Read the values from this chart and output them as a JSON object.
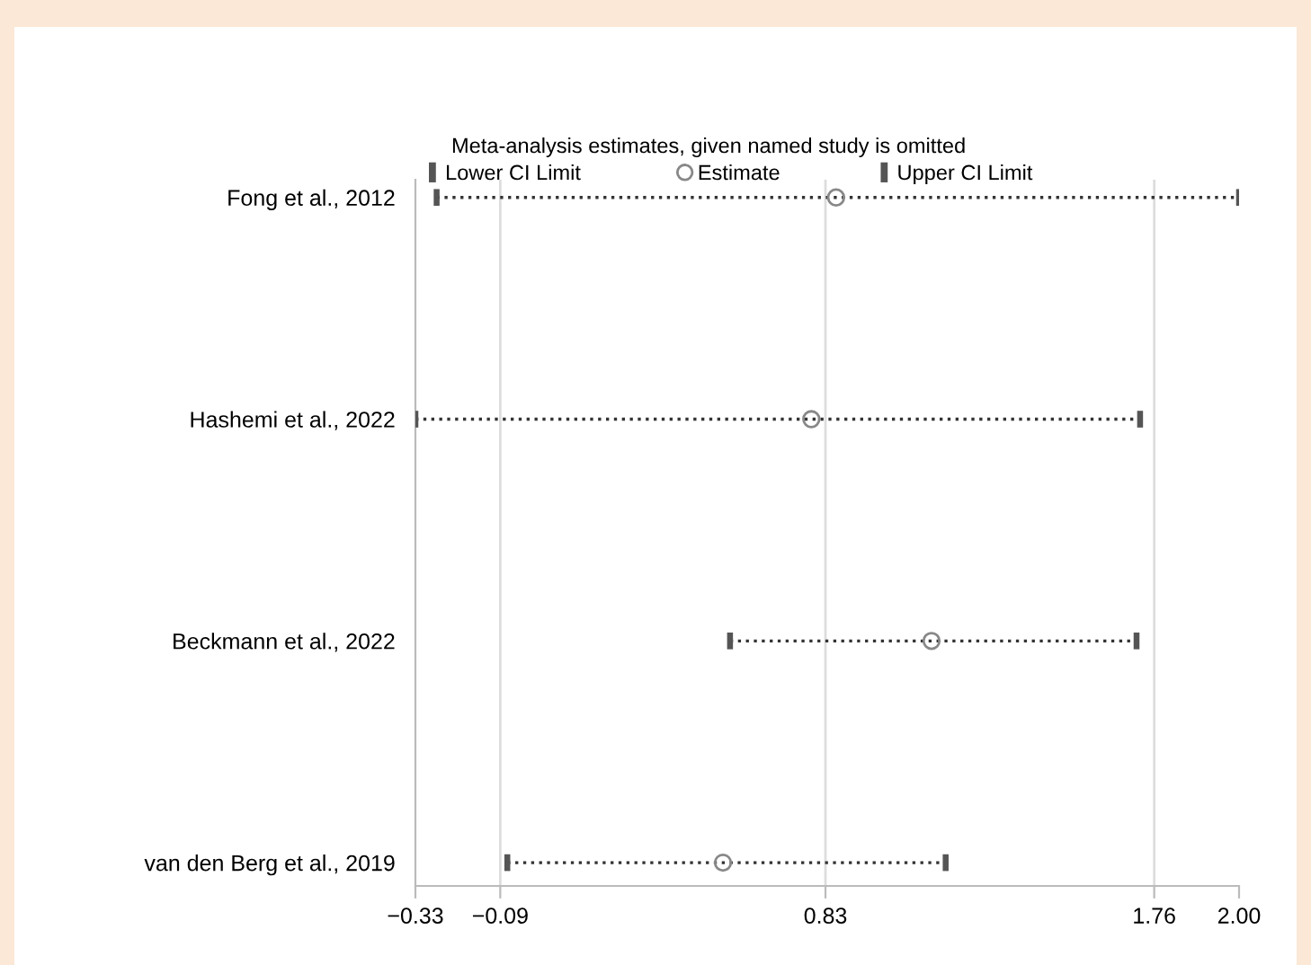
{
  "chart_data": {
    "type": "scatter",
    "orientation": "horizontal",
    "title": "Meta-analysis estimates, given named study is omitted",
    "categories": [
      "Fong et al., 2012",
      "Hashemi et al., 2022",
      "Beckmann et al., 2022",
      "van den Berg et al., 2019"
    ],
    "series": [
      {
        "name": "Lower CI Limit",
        "color": "#555555",
        "values": [
          -0.27,
          -0.33,
          0.56,
          -0.07
        ]
      },
      {
        "name": "Estimate",
        "color": "#888888",
        "marker": "circle",
        "values": [
          0.86,
          0.79,
          1.13,
          0.54
        ]
      },
      {
        "name": "Upper CI Limit",
        "color": "#555555",
        "values": [
          2.0,
          1.72,
          1.71,
          1.17
        ]
      }
    ],
    "line_style": "dotted",
    "xlim": [
      -0.33,
      2.0
    ],
    "xticks": [
      -0.33,
      -0.09,
      0.83,
      1.76,
      {
        "value": 2,
        "label": "2.00"
      }
    ],
    "grid": "x",
    "legend": "top"
  }
}
